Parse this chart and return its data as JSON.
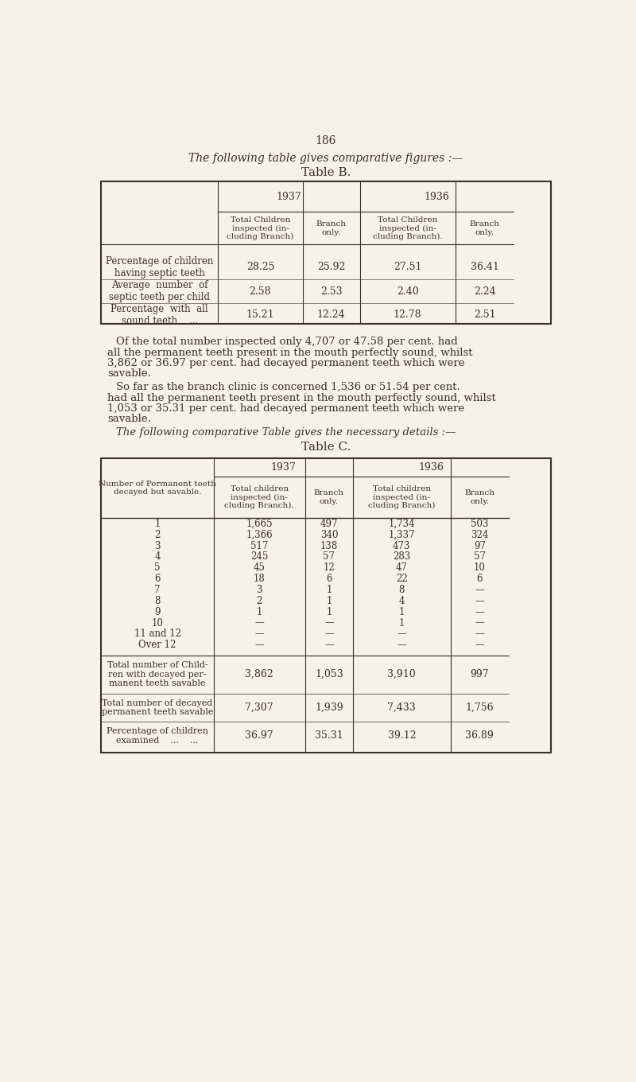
{
  "bg_color": "#f5f2e8",
  "text_color": "#3a3228",
  "page_number": "186",
  "intro_text": "The following table gives comparative figures :—",
  "table_b_title": "Table B.",
  "para1_lines": [
    "Of the total number inspected only 4,707 or 47.58 per cent. had",
    "all the permanent teeth present in the mouth perfectly sound, whilst",
    "3,862 or 36.97 per cent. had decayed permanent teeth which were",
    "savable."
  ],
  "para2_lines": [
    "So far as the branch clinic is concerned 1,536 or 51.54 per cent.",
    "had all the permanent teeth present in the mouth perfectly sound, whilst",
    "1,053 or 35.31 per cent. had decayed permanent teeth which were",
    "savable."
  ],
  "para3": "The following comparative Table gives the necessary details :—",
  "table_c_title": "Table C.",
  "table_b": {
    "col_headers_sub": [
      "Total Children\ninspected (in-\ncluding Branch)",
      "Branch\nonly.",
      "Total Children\ninspected (in-\ncluding Branch).",
      "Branch\nonly."
    ],
    "rows": [
      {
        "label": "Percentage of children\nhaving septic teeth",
        "values": [
          "28.25",
          "25.92",
          "27.51",
          "36.41"
        ]
      },
      {
        "label": "Average  number  of\nseptic teeth per child",
        "values": [
          "2.58",
          "2.53",
          "2.40",
          "2.24"
        ]
      },
      {
        "label": "Percentage  with  all\nsound teeth    ...",
        "values": [
          "15.21",
          "12.24",
          "12.78",
          "2.51"
        ]
      }
    ]
  },
  "table_c": {
    "col_headers_sub": [
      "Total children\ninspected (in-\ncluding Branch).",
      "Branch\nonly.",
      "Total children\ninspected (in-\ncluding Branch)",
      "Branch\nonly."
    ],
    "row_label_header": "Number of Permanent teeth\ndecayed but savable.",
    "data_rows": [
      [
        "1",
        "1,665",
        "497",
        "1,734",
        "503"
      ],
      [
        "2",
        "1,366",
        "340",
        "1,337",
        "324"
      ],
      [
        "3",
        "517",
        "138",
        "473",
        "97"
      ],
      [
        "4",
        "245",
        "57",
        "283",
        "57"
      ],
      [
        "5",
        "45",
        "12",
        "47",
        "10"
      ],
      [
        "6",
        "18",
        "6",
        "22",
        "6"
      ],
      [
        "7",
        "3",
        "1",
        "8",
        "—"
      ],
      [
        "8",
        "2",
        "1",
        "4",
        "—"
      ],
      [
        "9",
        "1",
        "1",
        "1",
        "—"
      ],
      [
        "10",
        "—",
        "—",
        "1",
        "—"
      ],
      [
        "11 and 12",
        "—",
        "—",
        "—",
        "—"
      ],
      [
        "Over 12",
        "—",
        "—",
        "—",
        "—"
      ]
    ],
    "summary_rows": [
      {
        "label": "Total number of Child-\nren with decayed per-\nmanent teeth savable",
        "values": [
          "3,862",
          "1,053",
          "3,910",
          "997"
        ]
      },
      {
        "label": "Total number of decayed\npermanent teeth savable",
        "values": [
          "7,307",
          "1,939",
          "7,433",
          "1,756"
        ]
      },
      {
        "label": "Percentage of children\nexamined    ...    ...",
        "values": [
          "36.97",
          "35.31",
          "39.12",
          "36.89"
        ]
      }
    ]
  }
}
